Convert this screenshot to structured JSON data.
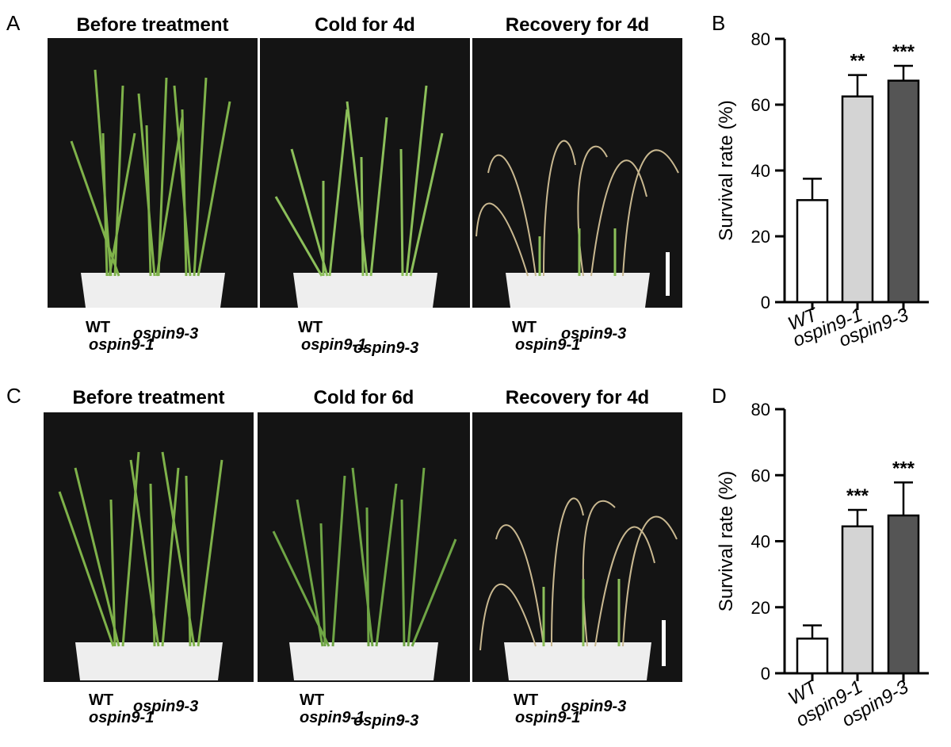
{
  "panels": {
    "A": {
      "letter": "A",
      "titles": [
        "Before treatment",
        "Cold for 4d",
        "Recovery for 4d"
      ],
      "genotype_labels": [
        "WT",
        "ospin9-1",
        "ospin9-3"
      ]
    },
    "C": {
      "letter": "C",
      "titles": [
        "Before treatment",
        "Cold for 6d",
        "Recovery for 4d"
      ],
      "genotype_labels": [
        "WT",
        "ospin9-1",
        "ospin9-3"
      ]
    },
    "B": {
      "letter": "B"
    },
    "D": {
      "letter": "D"
    }
  },
  "chart_data": [
    {
      "panel": "B",
      "type": "bar",
      "categories": [
        "WT",
        "ospin9-1",
        "ospin9-3"
      ],
      "values": [
        31,
        62.5,
        67.3
      ],
      "errors": [
        6.5,
        6.5,
        4.5
      ],
      "significance": [
        "",
        "**",
        "***"
      ],
      "bar_colors": [
        "#ffffff",
        "#d4d4d4",
        "#555555"
      ],
      "xlabel": "",
      "ylabel": "Survival rate (%)",
      "ylim": [
        0,
        80
      ],
      "yticks": [
        0,
        20,
        40,
        60,
        80
      ],
      "grid": false,
      "legend": false
    },
    {
      "panel": "D",
      "type": "bar",
      "categories": [
        "WT",
        "ospin9-1",
        "ospin9-3"
      ],
      "values": [
        10.5,
        44.5,
        47.8
      ],
      "errors": [
        4,
        5,
        10
      ],
      "significance": [
        "",
        "***",
        "***"
      ],
      "bar_colors": [
        "#ffffff",
        "#d4d4d4",
        "#555555"
      ],
      "xlabel": "",
      "ylabel": "Survival rate (%)",
      "ylim": [
        0,
        80
      ],
      "yticks": [
        0,
        20,
        40,
        60,
        80
      ],
      "grid": false,
      "legend": false
    }
  ]
}
